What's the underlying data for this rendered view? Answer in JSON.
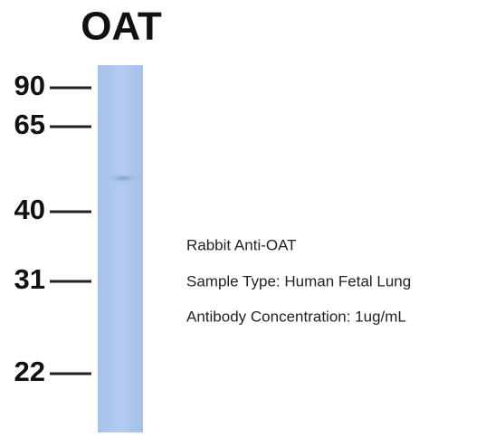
{
  "title": "OAT",
  "markers": [
    "90",
    "65",
    "40",
    "31",
    "22"
  ],
  "info": [
    "Rabbit Anti-OAT",
    "Sample Type: Human Fetal Lung",
    "Antibody Concentration: 1ug/mL"
  ]
}
